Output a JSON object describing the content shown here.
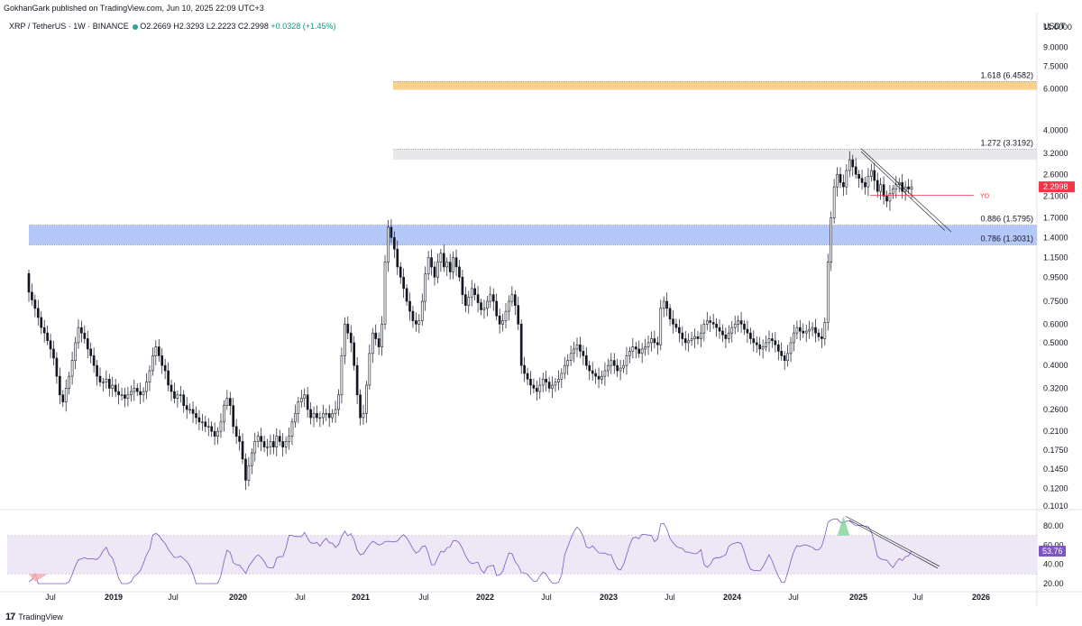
{
  "header": {
    "published_by": "GokhanGark published on TradingView.com, Jun 10, 2025 22:09 UTC+3",
    "symbol": "XRP / TetherUS · 1W · BINANCE",
    "open": "O2.2669",
    "high": "H2.3293",
    "low": "L2.2223",
    "close": "C2.2998",
    "change": "+0.0328 (+1.45%)",
    "currency": "USDT"
  },
  "footer": {
    "logo_text": "TradingView"
  },
  "colors": {
    "candle": "#131722",
    "fib_zone_orange": "#f7c978",
    "fib_zone_blue": "#a7bff8",
    "fib_zone_gray": "#e4e4e7",
    "rsi_line": "#7e57c2",
    "rsi_band": "#ede7f6",
    "rsi_overbought": "#7fd59a",
    "rsi_oversold": "#f7a8a8",
    "price_tag": "#f23645",
    "rsi_tag": "#7e57c2",
    "yo_line": "#f23645"
  },
  "chart_data": [
    {
      "type": "candlestick",
      "title": "",
      "y_scale": "log",
      "ylim": [
        0.1,
        11.0
      ],
      "y_ticks": [
        "11.0000",
        "9.0000",
        "7.5000",
        "6.0000",
        "4.0000",
        "3.2000",
        "2.6000",
        "2.1000",
        "1.7000",
        "1.4000",
        "1.1500",
        "0.9500",
        "0.7500",
        "0.6000",
        "0.5000",
        "0.4000",
        "0.3200",
        "0.2600",
        "0.2100",
        "0.1750",
        "0.1450",
        "0.1200",
        "0.1010"
      ],
      "x_ticks": [
        "Jul",
        "2019",
        "Jul",
        "2020",
        "Jul",
        "2021",
        "Jul",
        "2022",
        "Jul",
        "2023",
        "Jul",
        "2024",
        "Jul",
        "2025",
        "Jul",
        "2026"
      ],
      "last_price": "2.2998",
      "last_price_value": 2.2998,
      "fib_levels": [
        {
          "label": "1.618 (6.4582)",
          "value": 6.4582,
          "zone_low": 5.95
        },
        {
          "label": "1.272 (3.3192)",
          "value": 3.3192,
          "zone_low": 3.0
        },
        {
          "label": "0.886 (1.5795)",
          "value": 1.5795,
          "zone_low": 1.3031
        },
        {
          "label": "0.786 (1.3031)",
          "value": 1.3031
        }
      ],
      "annotations": [
        {
          "text": "YO",
          "value": 2.12
        }
      ],
      "weekly_closes": [
        0.82,
        0.76,
        0.7,
        0.64,
        0.58,
        0.55,
        0.51,
        0.47,
        0.43,
        0.36,
        0.3,
        0.28,
        0.32,
        0.36,
        0.42,
        0.5,
        0.58,
        0.55,
        0.52,
        0.47,
        0.44,
        0.4,
        0.36,
        0.34,
        0.34,
        0.35,
        0.32,
        0.33,
        0.31,
        0.3,
        0.3,
        0.29,
        0.3,
        0.31,
        0.32,
        0.31,
        0.3,
        0.31,
        0.34,
        0.38,
        0.44,
        0.48,
        0.44,
        0.4,
        0.38,
        0.33,
        0.31,
        0.29,
        0.3,
        0.3,
        0.27,
        0.26,
        0.26,
        0.25,
        0.24,
        0.23,
        0.23,
        0.22,
        0.22,
        0.21,
        0.2,
        0.21,
        0.23,
        0.27,
        0.29,
        0.27,
        0.22,
        0.2,
        0.19,
        0.16,
        0.13,
        0.15,
        0.17,
        0.19,
        0.2,
        0.19,
        0.18,
        0.18,
        0.19,
        0.18,
        0.2,
        0.19,
        0.18,
        0.19,
        0.2,
        0.23,
        0.25,
        0.28,
        0.29,
        0.3,
        0.26,
        0.24,
        0.25,
        0.24,
        0.24,
        0.25,
        0.25,
        0.24,
        0.25,
        0.26,
        0.3,
        0.44,
        0.6,
        0.55,
        0.5,
        0.4,
        0.3,
        0.24,
        0.25,
        0.33,
        0.45,
        0.55,
        0.52,
        0.48,
        0.6,
        1.1,
        1.55,
        1.4,
        1.25,
        1.05,
        0.95,
        0.85,
        0.75,
        0.68,
        0.62,
        0.6,
        0.62,
        0.75,
        0.98,
        1.15,
        1.05,
        0.95,
        1.1,
        1.2,
        1.05,
        1.1,
        1.0,
        1.15,
        1.05,
        0.95,
        0.8,
        0.72,
        0.78,
        0.85,
        0.8,
        0.74,
        0.69,
        0.7,
        0.75,
        0.8,
        0.75,
        0.65,
        0.6,
        0.62,
        0.68,
        0.75,
        0.8,
        0.72,
        0.6,
        0.4,
        0.37,
        0.35,
        0.33,
        0.32,
        0.31,
        0.33,
        0.35,
        0.34,
        0.32,
        0.33,
        0.34,
        0.35,
        0.37,
        0.4,
        0.42,
        0.45,
        0.47,
        0.49,
        0.46,
        0.44,
        0.4,
        0.38,
        0.37,
        0.36,
        0.35,
        0.36,
        0.38,
        0.4,
        0.42,
        0.4,
        0.38,
        0.39,
        0.4,
        0.44,
        0.46,
        0.48,
        0.47,
        0.45,
        0.47,
        0.48,
        0.5,
        0.52,
        0.5,
        0.49,
        0.7,
        0.75,
        0.7,
        0.63,
        0.6,
        0.58,
        0.55,
        0.52,
        0.5,
        0.51,
        0.52,
        0.53,
        0.52,
        0.55,
        0.6,
        0.62,
        0.61,
        0.6,
        0.58,
        0.56,
        0.54,
        0.52,
        0.55,
        0.58,
        0.6,
        0.62,
        0.6,
        0.57,
        0.55,
        0.52,
        0.5,
        0.49,
        0.47,
        0.48,
        0.5,
        0.52,
        0.51,
        0.49,
        0.46,
        0.44,
        0.42,
        0.45,
        0.5,
        0.55,
        0.58,
        0.56,
        0.55,
        0.56,
        0.57,
        0.58,
        0.55,
        0.53,
        0.52,
        0.61,
        1.1,
        1.7,
        2.3,
        2.6,
        2.4,
        2.3,
        2.7,
        3.0,
        2.8,
        2.6,
        2.5,
        2.4,
        2.3,
        2.55,
        2.7,
        2.45,
        2.2,
        2.35,
        2.1,
        2.0,
        2.15,
        2.25,
        2.35,
        2.4,
        2.2,
        2.3,
        2.25,
        2.3
      ]
    },
    {
      "type": "line",
      "title": "",
      "ylim": [
        15,
        100
      ],
      "y_ticks": [
        "80.00",
        "60.00",
        "40.00",
        "20.00"
      ],
      "last_value": "53.76",
      "last_value_num": 53.76,
      "overbought": 70,
      "oversold": 30
    }
  ]
}
